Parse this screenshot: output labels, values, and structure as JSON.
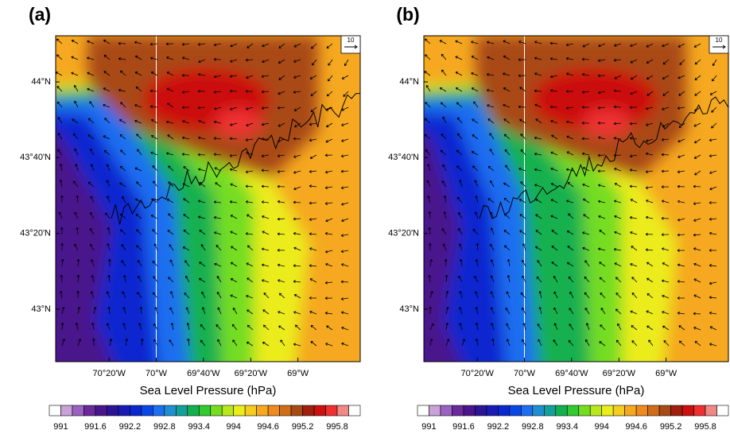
{
  "chart_data": [
    {
      "type": "map",
      "title": "(a)",
      "xlabel": "Sea Level Pressure  (hPa)",
      "xlim": [
        -70.71,
        -68.56
      ],
      "ylim": [
        42.769,
        44.203
      ],
      "xticks": [
        {
          "value": -70.333,
          "label": "70°20'W"
        },
        {
          "value": -70,
          "label": "70°W"
        },
        {
          "value": -69.667,
          "label": "69°40'W"
        },
        {
          "value": -69.333,
          "label": "69°20'W"
        },
        {
          "value": -69,
          "label": "69°W"
        }
      ],
      "yticks": [
        {
          "value": 43,
          "label": "43°N"
        },
        {
          "value": 43.333,
          "label": "43°20'N"
        },
        {
          "value": 43.667,
          "label": "43°40'N"
        },
        {
          "value": 44,
          "label": "44°N"
        }
      ],
      "reference_vector": 10,
      "colorbar": {
        "ticks": [
          991,
          991.6,
          992.2,
          992.8,
          993.4,
          994,
          994.6,
          995.2,
          995.8
        ],
        "colors": [
          "#ffffff",
          "#c8a2d8",
          "#9a63c2",
          "#6a2a9e",
          "#4a148c",
          "#2b1496",
          "#1a1ab4",
          "#0a28d0",
          "#0a46e6",
          "#1e6ef0",
          "#1f8fd0",
          "#14a09a",
          "#14b050",
          "#30cc30",
          "#74dd20",
          "#b8e81a",
          "#ecec1a",
          "#f5cc20",
          "#f5a820",
          "#ee8a1e",
          "#d06e18",
          "#a84a14",
          "#a01e0e",
          "#cc1010",
          "#ee3030",
          "#f08888",
          "#ffffff"
        ]
      }
    },
    {
      "type": "map",
      "title": "(b)",
      "xlabel": "Sea Level Pressure  (hPa)",
      "xlim": [
        -70.71,
        -68.56
      ],
      "ylim": [
        42.769,
        44.203
      ],
      "xticks": [
        {
          "value": -70.333,
          "label": "70°20'W"
        },
        {
          "value": -70,
          "label": "70°W"
        },
        {
          "value": -69.667,
          "label": "69°40'W"
        },
        {
          "value": -69.333,
          "label": "69°20'W"
        },
        {
          "value": -69,
          "label": "69°W"
        }
      ],
      "yticks": [
        {
          "value": 43,
          "label": "43°N"
        },
        {
          "value": 43.333,
          "label": "43°20'N"
        },
        {
          "value": 43.667,
          "label": "43°40'N"
        },
        {
          "value": 44,
          "label": "44°N"
        }
      ],
      "reference_vector": 10,
      "colorbar": {
        "ticks": [
          991,
          991.6,
          992.2,
          992.8,
          993.4,
          994,
          994.6,
          995.2,
          995.8
        ],
        "colors": [
          "#ffffff",
          "#c8a2d8",
          "#9a63c2",
          "#6a2a9e",
          "#4a148c",
          "#2b1496",
          "#1a1ab4",
          "#0a28d0",
          "#0a46e6",
          "#1e6ef0",
          "#1f8fd0",
          "#14a09a",
          "#14b050",
          "#30cc30",
          "#74dd20",
          "#b8e81a",
          "#ecec1a",
          "#f5cc20",
          "#f5a820",
          "#ee8a1e",
          "#d06e18",
          "#a84a14",
          "#a01e0e",
          "#cc1010",
          "#ee3030",
          "#f08888",
          "#ffffff"
        ]
      }
    }
  ]
}
